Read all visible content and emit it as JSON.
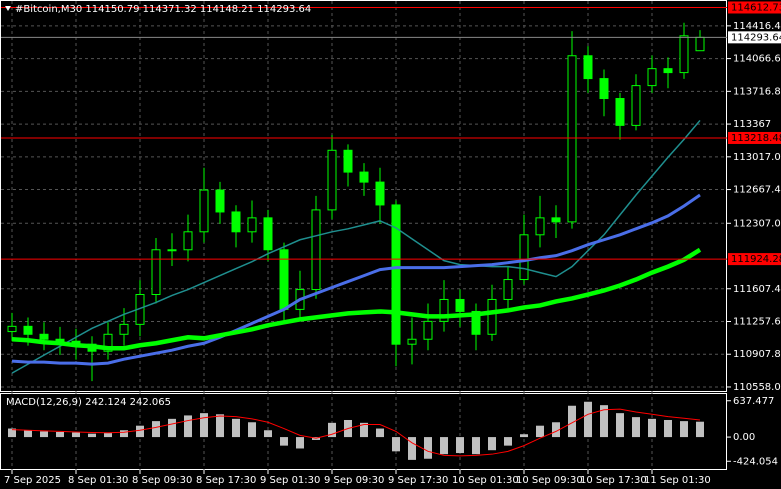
{
  "chart_data": [
    {
      "type": "candlestick",
      "title": "#Bitcoin,M30  114150.79 114371.32 114148.21 114293.64",
      "categories": [
        "7 Sep 2025",
        null,
        null,
        null,
        "8 Sep 01:30",
        null,
        null,
        null,
        "8 Sep 09:30",
        null,
        null,
        null,
        "8 Sep 17:30",
        null,
        null,
        null,
        "9 Sep 01:30",
        null,
        null,
        null,
        "9 Sep 09:30",
        null,
        null,
        null,
        "9 Sep 17:30",
        null,
        null,
        null,
        "10 Sep 01:30",
        null,
        null,
        null,
        "10 Sep 09:30",
        null,
        null,
        null,
        "10 Sep 17:30",
        null,
        null,
        null,
        "11 Sep 01:30",
        null,
        null,
        null
      ],
      "open": [
        111150,
        111206,
        111121,
        111068,
        111047,
        111015,
        110940,
        111121,
        111227,
        111546,
        112024,
        112024,
        112216,
        112662,
        112428,
        112216,
        112365,
        112024,
        111387,
        111599,
        112450,
        113087,
        112854,
        112747,
        112503,
        111015,
        111068,
        111259,
        111493,
        111365,
        111121,
        111493,
        111706,
        112184,
        112365,
        112322,
        114097,
        113853,
        113640,
        113353,
        113778,
        113959,
        113917,
        114150.79
      ],
      "high": [
        111350,
        111300,
        111250,
        111200,
        111180,
        111100,
        111250,
        111400,
        111700,
        112150,
        112200,
        112400,
        112900,
        112750,
        112500,
        112550,
        112450,
        112100,
        111800,
        112600,
        113250,
        113150,
        112950,
        112900,
        112550,
        111300,
        111450,
        111700,
        111600,
        111450,
        111650,
        111850,
        112400,
        112600,
        112500,
        114360,
        114200,
        113950,
        113700,
        113900,
        114100,
        114080,
        114450,
        114371.32
      ],
      "low": [
        111050,
        111000,
        110950,
        110900,
        110850,
        110620,
        110850,
        111000,
        111100,
        111450,
        111850,
        111900,
        112100,
        112300,
        112050,
        112100,
        111900,
        111250,
        111300,
        111500,
        112350,
        112700,
        112600,
        112300,
        110780,
        110800,
        110950,
        111150,
        111200,
        110950,
        111050,
        111400,
        111650,
        112050,
        112150,
        112250,
        113700,
        113450,
        113200,
        113300,
        113700,
        113750,
        113850,
        114148.21
      ],
      "close": [
        111206,
        111121,
        111068,
        111047,
        111015,
        110940,
        111121,
        111227,
        111546,
        112024,
        112024,
        112216,
        112662,
        112428,
        112216,
        112365,
        112024,
        111387,
        111599,
        112450,
        113087,
        112854,
        112747,
        112503,
        111015,
        111068,
        111259,
        111493,
        111365,
        111121,
        111493,
        111706,
        112184,
        112365,
        112322,
        114097,
        113853,
        113640,
        113353,
        113778,
        113959,
        113917,
        114310,
        114293.64
      ],
      "candle_color": "#00ff00",
      "series": [
        {
          "color": "#1f8f8f",
          "width": 1.5,
          "values": [
            110706,
            110802,
            110898,
            110993,
            111089,
            111185,
            111259,
            111334,
            111397,
            111461,
            111536,
            111599,
            111674,
            111748,
            111823,
            111897,
            111982,
            112056,
            112131,
            112173,
            112216,
            112248,
            112290,
            112333,
            112258,
            112141,
            112024,
            111908,
            111865,
            111854,
            111844,
            111844,
            111823,
            111780,
            111737,
            111844,
            112014,
            112184,
            112397,
            112609,
            112811,
            113013,
            113204,
            113406
          ]
        },
        {
          "color": "#4a6ee8",
          "width": 3,
          "values": [
            110834,
            110823,
            110823,
            110813,
            110813,
            110802,
            110813,
            110855,
            110887,
            110919,
            110951,
            110993,
            111025,
            111089,
            111163,
            111238,
            111312,
            111387,
            111493,
            111557,
            111621,
            111684,
            111748,
            111812,
            111833,
            111833,
            111833,
            111833,
            111844,
            111854,
            111865,
            111886,
            111908,
            111939,
            111961,
            112014,
            112078,
            112131,
            112184,
            112248,
            112312,
            112386,
            112492,
            112609
          ]
        },
        {
          "color": "#00ff00",
          "width": 4.5,
          "values": [
            111068,
            111057,
            111036,
            111025,
            111004,
            110993,
            110972,
            110972,
            111004,
            111025,
            111057,
            111089,
            111078,
            111110,
            111142,
            111174,
            111217,
            111249,
            111280,
            111302,
            111323,
            111344,
            111355,
            111365,
            111355,
            111334,
            111312,
            111312,
            111323,
            111334,
            111355,
            111376,
            111408,
            111429,
            111472,
            111504,
            111546,
            111589,
            111642,
            111706,
            111780,
            111844,
            111918,
            112024
          ]
        }
      ],
      "levels": [
        114612.73,
        113218.48,
        111924.28
      ],
      "level_color": "#ff0000",
      "last_price": 114293.64,
      "ylim": [
        110515,
        114682
      ],
      "yticks": [
        {
          "value": 114416.4,
          "label": "114416.40"
        },
        {
          "value": 114066.6,
          "label": "114066.60"
        },
        {
          "value": 113716.8,
          "label": "113716.80"
        },
        113367,
        {
          "value": 113017,
          "label": "113017.00"
        },
        {
          "value": 112667.4,
          "label": "112667.40"
        },
        {
          "value": 112307,
          "label": "112307.00"
        },
        {
          "value": 111607.4,
          "label": "111607.40"
        },
        {
          "value": 111257.6,
          "label": "111257.60"
        },
        {
          "value": 110907.8,
          "label": "110907.80"
        },
        {
          "value": 110558,
          "label": "110558.00"
        }
      ],
      "grid": true
    },
    {
      "type": "macd",
      "title": "MACD(12,26,9) 242.124 242.065",
      "histogram": [
        150,
        120,
        100,
        90,
        80,
        60,
        70,
        120,
        200,
        280,
        320,
        380,
        420,
        400,
        320,
        260,
        120,
        -150,
        -200,
        -50,
        250,
        300,
        250,
        150,
        -250,
        -400,
        -380,
        -300,
        -280,
        -300,
        -230,
        -150,
        50,
        200,
        260,
        550,
        620,
        560,
        420,
        350,
        320,
        300,
        280,
        270
      ],
      "signal": [
        130,
        120,
        110,
        100,
        90,
        80,
        75,
        85,
        120,
        170,
        230,
        290,
        340,
        370,
        360,
        320,
        260,
        150,
        30,
        -20,
        50,
        150,
        220,
        220,
        100,
        -100,
        -250,
        -320,
        -330,
        -320,
        -300,
        -250,
        -150,
        -20,
        100,
        250,
        400,
        480,
        490,
        440,
        400,
        360,
        330,
        300
      ],
      "histogram_color": "#c0c0c0",
      "signal_color": "#ff0000",
      "ylim": [
        -560,
        756
      ],
      "yticks": [
        637.477,
        {
          "value": 0,
          "label": "0.00"
        },
        -424.054
      ]
    }
  ]
}
